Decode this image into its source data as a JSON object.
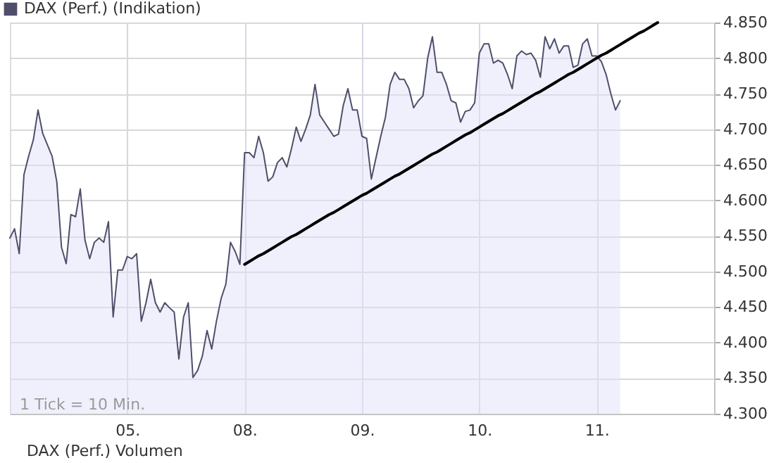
{
  "chart_data": {
    "type": "area",
    "categories": [
      null,
      null,
      null,
      null,
      null,
      null,
      null,
      null,
      null,
      null,
      null,
      null,
      null,
      null,
      null,
      null,
      null,
      null,
      null,
      null,
      null,
      null,
      null,
      null,
      null,
      "05.",
      null,
      null,
      null,
      null,
      null,
      null,
      null,
      null,
      null,
      null,
      null,
      null,
      null,
      null,
      null,
      null,
      null,
      null,
      null,
      null,
      null,
      null,
      null,
      null,
      "08.",
      null,
      null,
      null,
      null,
      null,
      null,
      null,
      null,
      null,
      null,
      null,
      null,
      null,
      null,
      null,
      null,
      null,
      null,
      null,
      null,
      null,
      null,
      null,
      null,
      "09.",
      null,
      null,
      null,
      null,
      null,
      null,
      null,
      null,
      null,
      null,
      null,
      null,
      null,
      null,
      null,
      null,
      null,
      null,
      null,
      null,
      null,
      null,
      null,
      null,
      "10.",
      null,
      null,
      null,
      null,
      null,
      null,
      null,
      null,
      null,
      null,
      null,
      null,
      null,
      null,
      null,
      null,
      null,
      null,
      null,
      null,
      null,
      null,
      null,
      null,
      "11.",
      null,
      null,
      null,
      null,
      null,
      null,
      null,
      null,
      null,
      null,
      null,
      null,
      null,
      null,
      null,
      null,
      null,
      null,
      null,
      null,
      null,
      null,
      null,
      null,
      null
    ],
    "ylim": [
      4300,
      4850
    ],
    "yticks": [
      {
        "value": 4300,
        "label": "4.300"
      },
      {
        "value": 4350,
        "label": "4.350"
      },
      {
        "value": 4400,
        "label": "4.400"
      },
      {
        "value": 4450,
        "label": "4.450"
      },
      {
        "value": 4500,
        "label": "4.500"
      },
      {
        "value": 4550,
        "label": "4.550"
      },
      {
        "value": 4600,
        "label": "4.600"
      },
      {
        "value": 4650,
        "label": "4.650"
      },
      {
        "value": 4700,
        "label": "4.700"
      },
      {
        "value": 4750,
        "label": "4.750"
      },
      {
        "value": 4800,
        "label": "4.800"
      },
      {
        "value": 4850,
        "label": "4.850"
      }
    ],
    "grid": true,
    "legend": "top left",
    "annotations": [
      "1 Tick = 10 Min.",
      "DAX (Perf.) Volumen"
    ],
    "series": [
      {
        "name": "DAX (Perf.) (Indikation)",
        "color": "#4f4f6b",
        "values": [
          4547,
          4560,
          4525,
          4636,
          4662,
          4685,
          4727,
          4694,
          4678,
          4662,
          4626,
          4534,
          4511,
          4580,
          4577,
          4616,
          4544,
          4518,
          4541,
          4547,
          4541,
          4570,
          4436,
          4502,
          4502,
          4521,
          4518,
          4525,
          4430,
          4456,
          4489,
          4456,
          4443,
          4456,
          4449,
          4443,
          4377,
          4436,
          4456,
          4351,
          4361,
          4381,
          4417,
          4391,
          4430,
          4462,
          4482,
          4541,
          4528,
          4510,
          4667,
          4667,
          4660,
          4690,
          4667,
          4627,
          4633,
          4653,
          4660,
          4647,
          4673,
          4703,
          4683,
          4700,
          4720,
          4763,
          4720,
          4710,
          4700,
          4690,
          4693,
          4733,
          4757,
          4727,
          4727,
          4690,
          4687,
          4630,
          4660,
          4690,
          4717,
          4763,
          4780,
          4770,
          4770,
          4757,
          4730,
          4740,
          4747,
          4800,
          4830,
          4780,
          4780,
          4763,
          4740,
          4737,
          4710,
          4725,
          4727,
          4737,
          4807,
          4820,
          4820,
          4793,
          4797,
          4793,
          4777,
          4757,
          4803,
          4810,
          4805,
          4807,
          4797,
          4773,
          4830,
          4813,
          4827,
          4807,
          4817,
          4817,
          4787,
          4790,
          4820,
          4827,
          4803,
          4803,
          4795,
          4777,
          4750,
          4727,
          4740,
          null,
          null,
          null,
          null,
          null,
          null,
          null,
          null,
          null,
          null,
          null,
          null,
          null,
          null,
          null,
          null,
          null,
          null,
          null,
          null
        ]
      },
      {
        "type": "line",
        "color": "#000000",
        "values": [
          null,
          null,
          null,
          null,
          null,
          null,
          null,
          null,
          null,
          null,
          null,
          null,
          null,
          null,
          null,
          null,
          null,
          null,
          null,
          null,
          null,
          null,
          null,
          null,
          null,
          null,
          null,
          null,
          null,
          null,
          null,
          null,
          null,
          null,
          null,
          null,
          null,
          null,
          null,
          null,
          null,
          null,
          null,
          null,
          null,
          null,
          null,
          null,
          null,
          null,
          4510,
          4514,
          4518,
          4522,
          4525,
          4529,
          4533,
          4537,
          4541,
          4545,
          4549,
          4552,
          4556,
          4560,
          4564,
          4568,
          4572,
          4576,
          4580,
          4583,
          4587,
          4591,
          4595,
          4599,
          4603,
          4607,
          4610,
          4614,
          4618,
          4622,
          4626,
          4630,
          4634,
          4637,
          4641,
          4645,
          4649,
          4653,
          4657,
          4661,
          4665,
          4668,
          4672,
          4676,
          4680,
          4684,
          4688,
          4692,
          4695,
          4699,
          4703,
          4707,
          4711,
          4715,
          4719,
          4722,
          4726,
          4730,
          4734,
          4738,
          4742,
          4746,
          4750,
          4753,
          4757,
          4761,
          4765,
          4769,
          4773,
          4777,
          4780,
          4784,
          4788,
          4792,
          4796,
          4800,
          4804,
          4807,
          4811,
          4815,
          4819,
          4823,
          4827,
          4831,
          4835,
          4838,
          4842,
          4846,
          4850,
          null,
          null,
          null,
          null,
          null,
          null,
          null,
          null,
          null,
          null,
          null,
          null
        ]
      }
    ]
  }
}
